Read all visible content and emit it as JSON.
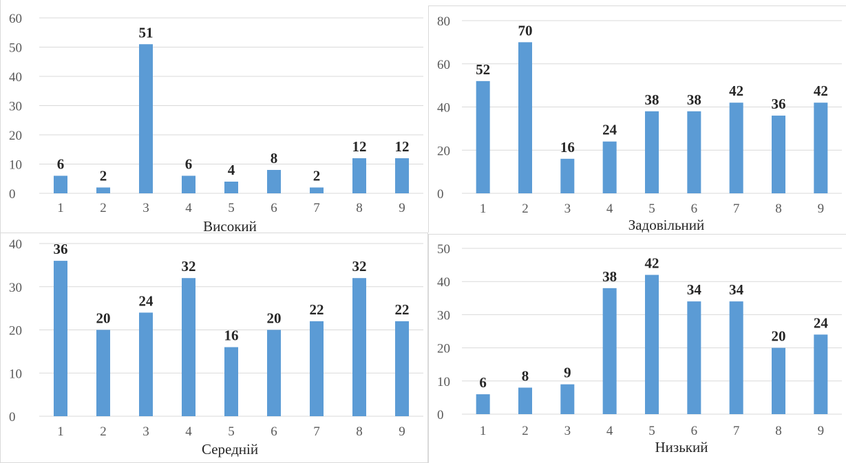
{
  "colors": {
    "bar": "#5b9bd5",
    "grid": "#d9d9d9",
    "border": "#d9d9d9"
  },
  "chart_data": [
    {
      "type": "bar",
      "title": "Високий",
      "categories": [
        "1",
        "2",
        "3",
        "4",
        "5",
        "6",
        "7",
        "8",
        "9"
      ],
      "values": [
        6,
        2,
        51,
        6,
        4,
        8,
        2,
        12,
        12
      ],
      "ylim": [
        0,
        60
      ],
      "yticks": [
        0,
        10,
        20,
        30,
        40,
        50,
        60
      ],
      "grid": true,
      "data_labels": true
    },
    {
      "type": "bar",
      "title": "Задовільний",
      "categories": [
        "1",
        "2",
        "3",
        "4",
        "5",
        "6",
        "7",
        "8",
        "9"
      ],
      "values": [
        52,
        70,
        16,
        24,
        38,
        38,
        42,
        36,
        42
      ],
      "ylim": [
        0,
        80
      ],
      "yticks": [
        0,
        20,
        40,
        60,
        80
      ],
      "grid": true,
      "data_labels": true
    },
    {
      "type": "bar",
      "title": "Середній",
      "categories": [
        "1",
        "2",
        "3",
        "4",
        "5",
        "6",
        "7",
        "8",
        "9"
      ],
      "values": [
        36,
        20,
        24,
        32,
        16,
        20,
        22,
        32,
        22
      ],
      "ylim": [
        0,
        40
      ],
      "yticks": [
        0,
        10,
        20,
        30,
        40
      ],
      "grid": true,
      "data_labels": true
    },
    {
      "type": "bar",
      "title": "Низький",
      "categories": [
        "1",
        "2",
        "3",
        "4",
        "5",
        "6",
        "7",
        "8",
        "9"
      ],
      "values": [
        6,
        8,
        9,
        38,
        42,
        34,
        34,
        20,
        24
      ],
      "ylim": [
        0,
        50
      ],
      "yticks": [
        0,
        10,
        20,
        30,
        40,
        50
      ],
      "grid": true,
      "data_labels": true
    }
  ]
}
